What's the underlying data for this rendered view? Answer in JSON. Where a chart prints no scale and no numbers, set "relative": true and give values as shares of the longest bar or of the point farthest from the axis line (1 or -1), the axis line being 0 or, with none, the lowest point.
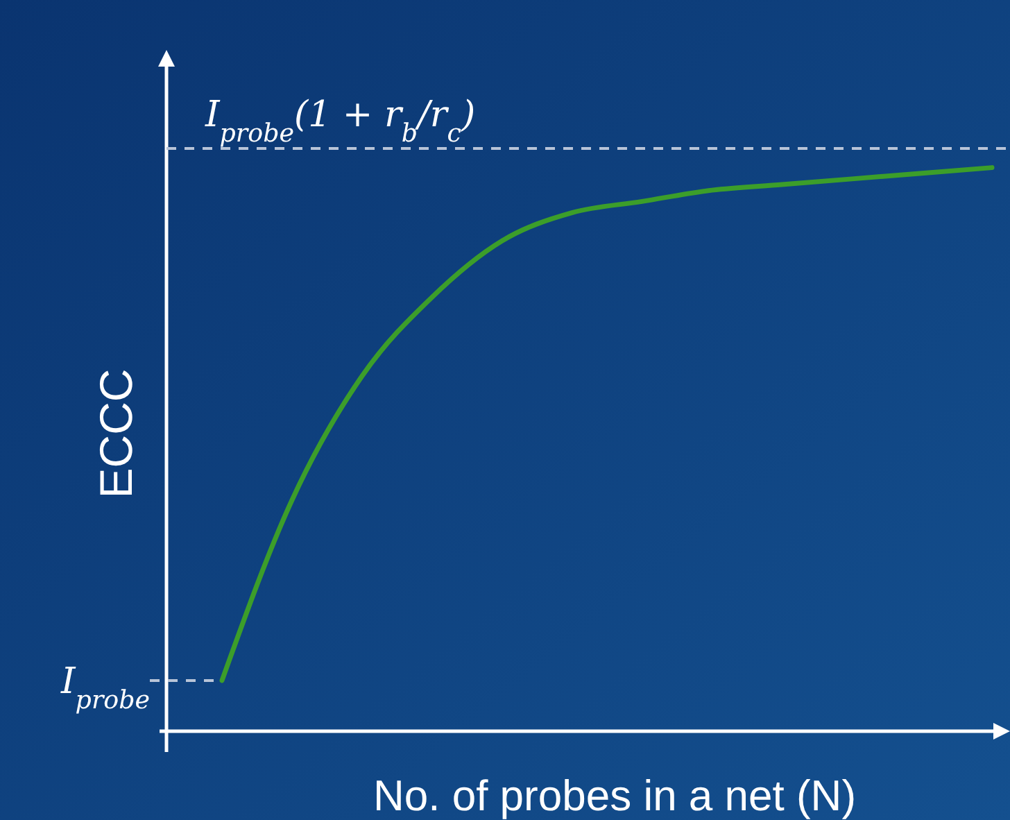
{
  "chart_data": {
    "type": "line",
    "relative": true,
    "xlabel": "No. of probes in a net (N)",
    "ylabel": "ECCC",
    "categories": [
      null,
      null,
      null,
      null,
      null,
      null,
      null,
      null,
      null,
      null,
      null,
      null
    ],
    "series": [
      {
        "color": "#3c9e2a",
        "values": [
          0.09,
          0.41,
          0.63,
          0.77,
          0.87,
          0.92,
          0.94,
          0.96,
          0.97,
          0.98,
          0.99,
          1.0
        ]
      }
    ],
    "ref_lines": [
      {
        "axis": "y",
        "value": 1.034,
        "label": "I$_{probe}$(1 + r$_{b}$/r$_{c}$)",
        "color": "#b8c4d8",
        "line_style": "dashed"
      },
      {
        "axis": "y",
        "value": 0.09,
        "label": "I$_{probe}$",
        "color": "#b8c4d8",
        "line_style": "dashed"
      }
    ],
    "line_style": "solid"
  }
}
